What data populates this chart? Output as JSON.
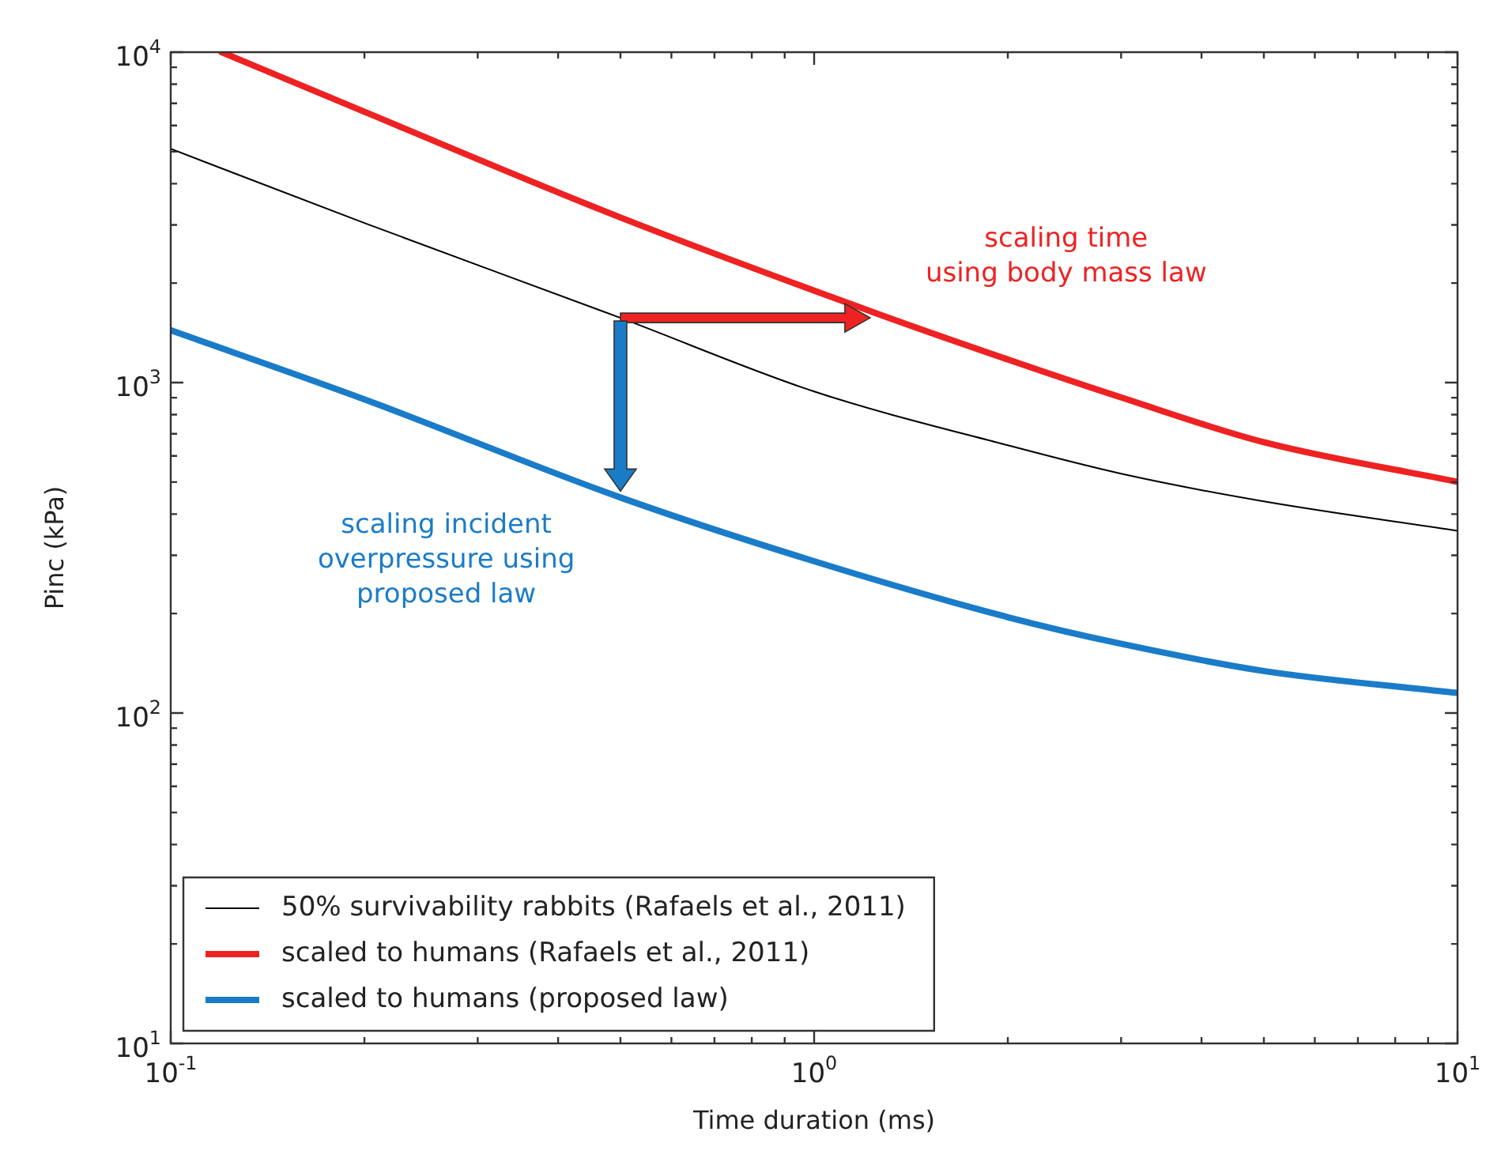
{
  "chart_data": {
    "type": "line",
    "xlabel": "Time duration (ms)",
    "ylabel": "Pinc (kPa)",
    "log": "xy",
    "grid": false,
    "legend": "bottom left",
    "marker": "none",
    "line_style": "solid",
    "xlim": [
      0.1,
      10
    ],
    "ylim": [
      10,
      10000
    ],
    "xticks": [
      {
        "value": 0.1,
        "label": "10$^{-1}$"
      },
      {
        "value": 0.2,
        "label": null
      },
      {
        "value": 0.3,
        "label": null
      },
      {
        "value": 0.4,
        "label": null
      },
      {
        "value": 0.5,
        "label": null
      },
      {
        "value": 0.6,
        "label": null
      },
      {
        "value": 0.7,
        "label": null
      },
      {
        "value": 0.8,
        "label": null
      },
      {
        "value": 0.9,
        "label": null
      },
      {
        "value": 1,
        "label": "10$^{0}$"
      },
      {
        "value": 2,
        "label": null
      },
      {
        "value": 3,
        "label": null
      },
      {
        "value": 4,
        "label": null
      },
      {
        "value": 5,
        "label": null
      },
      {
        "value": 6,
        "label": null
      },
      {
        "value": 7,
        "label": null
      },
      {
        "value": 8,
        "label": null
      },
      {
        "value": 9,
        "label": null
      },
      {
        "value": 10,
        "label": "10$^{1}$"
      }
    ],
    "yticks": [
      {
        "value": 10,
        "label": "10$^{1}$"
      },
      {
        "value": 20,
        "label": null
      },
      {
        "value": 30,
        "label": null
      },
      {
        "value": 40,
        "label": null
      },
      {
        "value": 50,
        "label": null
      },
      {
        "value": 60,
        "label": null
      },
      {
        "value": 70,
        "label": null
      },
      {
        "value": 80,
        "label": null
      },
      {
        "value": 90,
        "label": null
      },
      {
        "value": 100,
        "label": "10$^{2}$"
      },
      {
        "value": 200,
        "label": null
      },
      {
        "value": 300,
        "label": null
      },
      {
        "value": 400,
        "label": null
      },
      {
        "value": 500,
        "label": null
      },
      {
        "value": 600,
        "label": null
      },
      {
        "value": 700,
        "label": null
      },
      {
        "value": 800,
        "label": null
      },
      {
        "value": 900,
        "label": null
      },
      {
        "value": 1000,
        "label": "10$^{3}$"
      },
      {
        "value": 2000,
        "label": null
      },
      {
        "value": 3000,
        "label": null
      },
      {
        "value": 4000,
        "label": null
      },
      {
        "value": 5000,
        "label": null
      },
      {
        "value": 6000,
        "label": null
      },
      {
        "value": 7000,
        "label": null
      },
      {
        "value": 8000,
        "label": null
      },
      {
        "value": 9000,
        "label": null
      },
      {
        "value": 10000,
        "label": "10$^{4}$"
      }
    ],
    "series": [
      {
        "name": "50% survivability rabbits (Rafaels et al., 2011)",
        "color": "#000000",
        "x": [
          0.1,
          0.2,
          0.5,
          1,
          2,
          3,
          5,
          10
        ],
        "values": [
          5100,
          3040,
          1570,
          940,
          646,
          530,
          437,
          356
        ]
      },
      {
        "name": "scaled to humans (Rafaels et al., 2011)",
        "color": "#ee2222",
        "x": [
          0.12,
          0.2,
          0.5,
          1.25,
          2,
          3,
          5,
          10
        ],
        "values": [
          10000,
          6600,
          3160,
          1620,
          1175,
          902,
          660,
          501
        ]
      },
      {
        "name": "scaled to humans (proposed law)",
        "color": "#1a7cc8",
        "x": [
          0.1,
          0.2,
          0.5,
          1,
          2,
          3,
          5,
          10
        ],
        "values": [
          1440,
          890,
          449,
          288,
          195,
          162,
          134,
          115
        ]
      }
    ],
    "annotations": [
      "scaling time\nusing body mass law",
      "scaling incident\noverpressure using\nproposed law"
    ]
  }
}
